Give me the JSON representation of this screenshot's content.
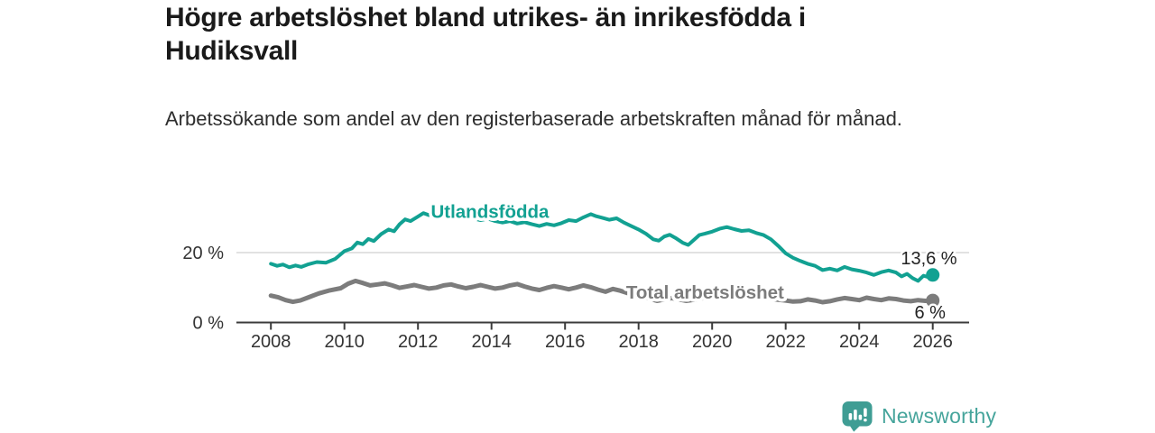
{
  "header": {
    "title": "Högre arbetslöshet bland utrikes- än inrikesfödda i Hudiksvall",
    "subtitle": "Arbetssökande som andel av den registerbaserade arbetskraften månad för månad."
  },
  "branding": {
    "name": "Newsworthy"
  },
  "colors": {
    "foreign_born_line": "#12a192",
    "total_line": "#7c7c7c",
    "gridline": "#d8d8d8",
    "axis": "#3b3b3b",
    "axis_text": "#333333",
    "value_text": "#222222",
    "logo_teal": "#3f9d94"
  },
  "chart_data": {
    "type": "line",
    "title": "Högre arbetslöshet bland utrikes- än inrikesfödda i Hudiksvall",
    "subtitle": "Arbetssökande som andel av den registerbaserade arbetskraften månad för månad.",
    "xlabel": "",
    "ylabel": "",
    "grid": "horizontal-20-only",
    "legend_position": "inline-labels-on-lines",
    "x_axis": {
      "ticks": [
        2008,
        2010,
        2012,
        2014,
        2016,
        2018,
        2020,
        2022,
        2024,
        2026
      ],
      "range": [
        2007.9,
        2027.0
      ]
    },
    "y_axis": {
      "ticks": [
        {
          "value": 0,
          "label": "0 %"
        },
        {
          "value": 20,
          "label": "20 %"
        }
      ],
      "range": [
        0,
        34
      ],
      "unit": "%"
    },
    "series": [
      {
        "id": "total",
        "name": "Total arbetslöshet",
        "color": "#7c7c7c",
        "line_width": 5,
        "label": {
          "text": "Total arbetslöshet",
          "year": 2017.66,
          "value": 6.9
        },
        "end_label": {
          "text": "6 %",
          "year": 2026.35,
          "value": 1.2
        },
        "end_value": 6.3,
        "points": [
          [
            2008.0,
            7.7
          ],
          [
            2008.2,
            7.2
          ],
          [
            2008.4,
            6.4
          ],
          [
            2008.6,
            5.9
          ],
          [
            2008.8,
            6.3
          ],
          [
            2009.0,
            7.1
          ],
          [
            2009.3,
            8.3
          ],
          [
            2009.6,
            9.2
          ],
          [
            2009.9,
            9.8
          ],
          [
            2010.1,
            11.1
          ],
          [
            2010.3,
            11.9
          ],
          [
            2010.5,
            11.3
          ],
          [
            2010.7,
            10.6
          ],
          [
            2010.9,
            10.9
          ],
          [
            2011.1,
            11.2
          ],
          [
            2011.3,
            10.6
          ],
          [
            2011.5,
            9.9
          ],
          [
            2011.7,
            10.3
          ],
          [
            2011.9,
            10.7
          ],
          [
            2012.1,
            10.2
          ],
          [
            2012.3,
            9.7
          ],
          [
            2012.5,
            10.0
          ],
          [
            2012.7,
            10.6
          ],
          [
            2012.9,
            10.9
          ],
          [
            2013.1,
            10.3
          ],
          [
            2013.3,
            9.8
          ],
          [
            2013.5,
            10.2
          ],
          [
            2013.7,
            10.7
          ],
          [
            2013.9,
            10.2
          ],
          [
            2014.1,
            9.7
          ],
          [
            2014.3,
            10.0
          ],
          [
            2014.5,
            10.6
          ],
          [
            2014.7,
            11.0
          ],
          [
            2014.9,
            10.3
          ],
          [
            2015.1,
            9.7
          ],
          [
            2015.3,
            9.3
          ],
          [
            2015.5,
            9.9
          ],
          [
            2015.7,
            10.4
          ],
          [
            2015.9,
            10.0
          ],
          [
            2016.1,
            9.5
          ],
          [
            2016.3,
            10.0
          ],
          [
            2016.5,
            10.6
          ],
          [
            2016.7,
            10.1
          ],
          [
            2016.9,
            9.4
          ],
          [
            2017.1,
            8.8
          ],
          [
            2017.3,
            9.6
          ],
          [
            2017.5,
            9.1
          ],
          [
            2017.7,
            8.4
          ],
          [
            2017.9,
            7.9
          ],
          [
            2018.1,
            7.4
          ],
          [
            2018.3,
            6.8
          ],
          [
            2018.5,
            6.2
          ],
          [
            2018.7,
            6.6
          ],
          [
            2018.9,
            7.0
          ],
          [
            2019.1,
            6.6
          ],
          [
            2019.3,
            6.2
          ],
          [
            2019.5,
            6.5
          ],
          [
            2019.7,
            6.9
          ],
          [
            2019.9,
            7.2
          ],
          [
            2020.1,
            7.6
          ],
          [
            2020.35,
            8.3
          ],
          [
            2020.6,
            8.0
          ],
          [
            2020.8,
            7.7
          ],
          [
            2021.0,
            7.9
          ],
          [
            2021.2,
            7.5
          ],
          [
            2021.4,
            7.1
          ],
          [
            2021.6,
            6.8
          ],
          [
            2021.8,
            6.5
          ],
          [
            2022.0,
            6.3
          ],
          [
            2022.2,
            6.0
          ],
          [
            2022.4,
            6.1
          ],
          [
            2022.6,
            6.6
          ],
          [
            2022.8,
            6.3
          ],
          [
            2023.0,
            5.8
          ],
          [
            2023.2,
            6.1
          ],
          [
            2023.4,
            6.6
          ],
          [
            2023.6,
            7.0
          ],
          [
            2023.8,
            6.7
          ],
          [
            2024.0,
            6.4
          ],
          [
            2024.2,
            7.1
          ],
          [
            2024.4,
            6.7
          ],
          [
            2024.6,
            6.4
          ],
          [
            2024.8,
            6.9
          ],
          [
            2025.0,
            6.7
          ],
          [
            2025.2,
            6.3
          ],
          [
            2025.4,
            6.1
          ],
          [
            2025.6,
            6.4
          ],
          [
            2025.8,
            6.2
          ],
          [
            2026.0,
            6.3
          ]
        ]
      },
      {
        "id": "utlandsfodda",
        "name": "Utlandsfödda",
        "color": "#12a192",
        "line_width": 4,
        "label": {
          "text": "Utlandsfödda",
          "year": 2012.35,
          "value": 30.0
        },
        "end_label": {
          "text": "13,6 %",
          "year": 2026.66,
          "value": 16.7
        },
        "end_value": 13.6,
        "points": [
          [
            2008.0,
            16.8
          ],
          [
            2008.17,
            16.2
          ],
          [
            2008.33,
            16.6
          ],
          [
            2008.5,
            15.8
          ],
          [
            2008.67,
            16.3
          ],
          [
            2008.83,
            15.9
          ],
          [
            2009.0,
            16.6
          ],
          [
            2009.25,
            17.3
          ],
          [
            2009.5,
            17.1
          ],
          [
            2009.75,
            18.2
          ],
          [
            2010.0,
            20.4
          ],
          [
            2010.2,
            21.2
          ],
          [
            2010.35,
            22.9
          ],
          [
            2010.5,
            22.4
          ],
          [
            2010.65,
            23.9
          ],
          [
            2010.8,
            23.3
          ],
          [
            2011.0,
            25.3
          ],
          [
            2011.2,
            26.6
          ],
          [
            2011.35,
            26.1
          ],
          [
            2011.5,
            28.1
          ],
          [
            2011.65,
            29.5
          ],
          [
            2011.8,
            29.0
          ],
          [
            2012.0,
            30.3
          ],
          [
            2012.15,
            31.3
          ],
          [
            2012.3,
            30.7
          ],
          [
            2012.45,
            32.0
          ],
          [
            2012.6,
            31.3
          ],
          [
            2012.75,
            31.7
          ],
          [
            2012.9,
            30.9
          ],
          [
            2013.1,
            30.2
          ],
          [
            2013.3,
            30.6
          ],
          [
            2013.5,
            29.8
          ],
          [
            2013.7,
            29.3
          ],
          [
            2013.9,
            29.7
          ],
          [
            2014.1,
            29.0
          ],
          [
            2014.3,
            28.6
          ],
          [
            2014.5,
            29.0
          ],
          [
            2014.7,
            28.3
          ],
          [
            2014.9,
            28.7
          ],
          [
            2015.1,
            28.1
          ],
          [
            2015.3,
            27.6
          ],
          [
            2015.5,
            28.2
          ],
          [
            2015.7,
            27.8
          ],
          [
            2015.9,
            28.4
          ],
          [
            2016.1,
            29.3
          ],
          [
            2016.3,
            29.0
          ],
          [
            2016.5,
            30.1
          ],
          [
            2016.7,
            31.0
          ],
          [
            2016.85,
            30.4
          ],
          [
            2017.0,
            30.0
          ],
          [
            2017.2,
            29.4
          ],
          [
            2017.4,
            29.8
          ],
          [
            2017.6,
            28.6
          ],
          [
            2017.8,
            27.6
          ],
          [
            2018.0,
            26.6
          ],
          [
            2018.2,
            25.4
          ],
          [
            2018.4,
            23.8
          ],
          [
            2018.55,
            23.4
          ],
          [
            2018.7,
            24.6
          ],
          [
            2018.85,
            25.1
          ],
          [
            2019.0,
            24.2
          ],
          [
            2019.2,
            22.8
          ],
          [
            2019.35,
            22.2
          ],
          [
            2019.5,
            23.6
          ],
          [
            2019.65,
            25.0
          ],
          [
            2019.8,
            25.4
          ],
          [
            2020.0,
            26.0
          ],
          [
            2020.2,
            26.8
          ],
          [
            2020.4,
            27.3
          ],
          [
            2020.6,
            26.7
          ],
          [
            2020.8,
            26.2
          ],
          [
            2021.0,
            26.4
          ],
          [
            2021.2,
            25.6
          ],
          [
            2021.4,
            25.0
          ],
          [
            2021.6,
            23.8
          ],
          [
            2021.8,
            21.9
          ],
          [
            2022.0,
            19.8
          ],
          [
            2022.2,
            18.5
          ],
          [
            2022.4,
            17.6
          ],
          [
            2022.6,
            16.8
          ],
          [
            2022.8,
            16.2
          ],
          [
            2023.0,
            15.0
          ],
          [
            2023.2,
            15.4
          ],
          [
            2023.4,
            14.9
          ],
          [
            2023.6,
            15.9
          ],
          [
            2023.8,
            15.2
          ],
          [
            2024.0,
            14.8
          ],
          [
            2024.2,
            14.3
          ],
          [
            2024.4,
            13.6
          ],
          [
            2024.6,
            14.4
          ],
          [
            2024.8,
            14.9
          ],
          [
            2025.0,
            14.3
          ],
          [
            2025.15,
            13.2
          ],
          [
            2025.3,
            13.9
          ],
          [
            2025.45,
            12.7
          ],
          [
            2025.6,
            11.9
          ],
          [
            2025.75,
            13.4
          ],
          [
            2025.9,
            12.9
          ],
          [
            2026.0,
            13.6
          ]
        ]
      }
    ]
  }
}
